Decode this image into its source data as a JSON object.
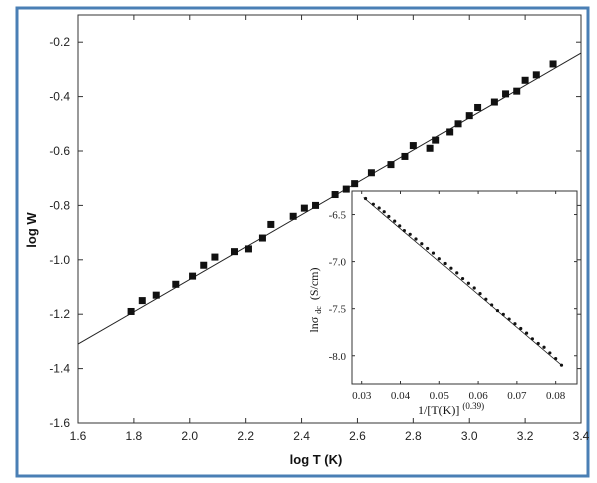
{
  "chart_data": [
    {
      "type": "scatter",
      "xlabel": "log T (K)",
      "ylabel": "log W",
      "xlim": [
        1.6,
        3.4
      ],
      "ylim": [
        -1.6,
        -0.1
      ],
      "xticks": [
        "1.6",
        "1.8",
        "2.0",
        "2.2",
        "2.4",
        "2.6",
        "2.8",
        "3.0",
        "3.2",
        "3.4"
      ],
      "yticks": [
        "-1.6",
        "-1.4",
        "-1.2",
        "-1.0",
        "-0.8",
        "-0.6",
        "-0.4",
        "-0.2"
      ],
      "series": [
        {
          "marker": "square",
          "x": [
            1.79,
            1.83,
            1.88,
            1.95,
            2.01,
            2.05,
            2.09,
            2.16,
            2.21,
            2.26,
            2.29,
            2.37,
            2.41,
            2.45,
            2.52,
            2.56,
            2.59,
            2.65,
            2.72,
            2.77,
            2.8,
            2.86,
            2.88,
            2.93,
            2.96,
            3.0,
            3.03,
            3.09,
            3.13,
            3.17,
            3.2,
            3.24,
            3.3
          ],
          "y": [
            -1.19,
            -1.15,
            -1.13,
            -1.09,
            -1.06,
            -1.02,
            -0.99,
            -0.97,
            -0.96,
            -0.92,
            -0.87,
            -0.84,
            -0.81,
            -0.8,
            -0.76,
            -0.74,
            -0.72,
            -0.68,
            -0.65,
            -0.62,
            -0.58,
            -0.59,
            -0.56,
            -0.53,
            -0.5,
            -0.47,
            -0.44,
            -0.42,
            -0.39,
            -0.38,
            -0.34,
            -0.32,
            -0.28
          ]
        }
      ],
      "fit_line": {
        "x": [
          1.6,
          3.4
        ],
        "y": [
          -1.31,
          -0.24
        ]
      },
      "grid": false
    },
    {
      "type": "scatter",
      "inset": true,
      "xlabel": "1/[T(K)]",
      "xlabel_exponent": "(0.39)",
      "ylabel": "lnσ",
      "ylabel_subscript": "dc",
      "ylabel_unit": "(S/cm)",
      "xlim": [
        0.0275,
        0.0855
      ],
      "ylim": [
        -8.3,
        -6.25
      ],
      "xticks": [
        "0.03",
        "0.04",
        "0.05",
        "0.06",
        "0.07",
        "0.08"
      ],
      "yticks": [
        "-6.5",
        "-7.0",
        "-7.5",
        "-8.0"
      ],
      "series": [
        {
          "marker": "dot",
          "x": [
            0.031,
            0.033,
            0.0345,
            0.0358,
            0.037,
            0.0385,
            0.0398,
            0.041,
            0.0425,
            0.044,
            0.0455,
            0.047,
            0.0485,
            0.05,
            0.0515,
            0.053,
            0.0545,
            0.056,
            0.0575,
            0.059,
            0.0605,
            0.062,
            0.0635,
            0.065,
            0.0665,
            0.068,
            0.0695,
            0.071,
            0.0725,
            0.074,
            0.0755,
            0.077,
            0.0785,
            0.08,
            0.0815
          ],
          "y": [
            -6.33,
            -6.39,
            -6.43,
            -6.47,
            -6.52,
            -6.57,
            -6.62,
            -6.67,
            -6.71,
            -6.76,
            -6.81,
            -6.86,
            -6.91,
            -6.97,
            -7.02,
            -7.07,
            -7.12,
            -7.18,
            -7.23,
            -7.28,
            -7.34,
            -7.4,
            -7.46,
            -7.52,
            -7.56,
            -7.61,
            -7.66,
            -7.71,
            -7.76,
            -7.82,
            -7.87,
            -7.91,
            -7.97,
            -8.03,
            -8.1
          ]
        }
      ],
      "fit_line": {
        "x": [
          0.0305,
          0.0815
        ],
        "y": [
          -6.32,
          -8.1
        ]
      }
    }
  ]
}
